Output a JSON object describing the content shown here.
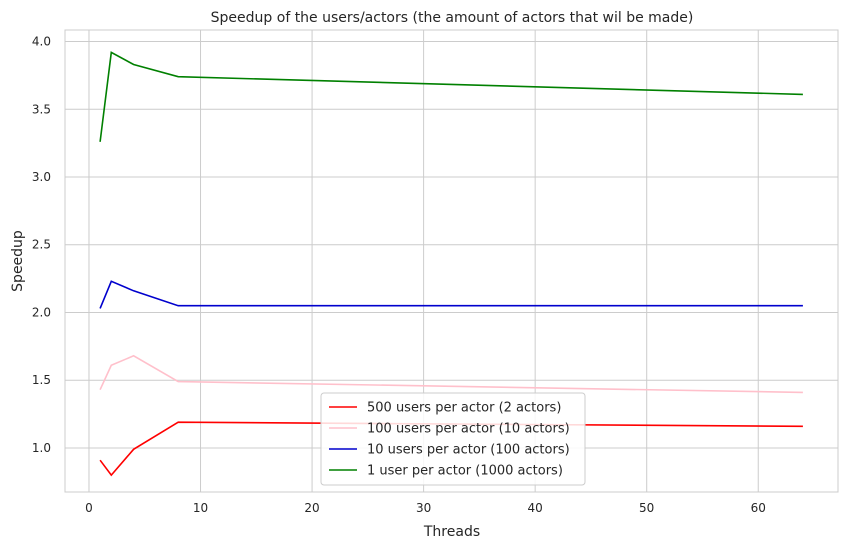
{
  "chart_data": {
    "type": "line",
    "title": "Speedup of the users/actors (the amount of actors that wil be made)",
    "xlabel": "Threads",
    "ylabel": "Speedup",
    "xlim": [
      -2.15,
      67.15
    ],
    "ylim": [
      0.675,
      4.085
    ],
    "xticks": [
      0,
      10,
      20,
      30,
      40,
      50,
      60
    ],
    "yticks": [
      1.0,
      1.5,
      2.0,
      2.5,
      3.0,
      3.5,
      4.0
    ],
    "ytick_labels": [
      "1.0",
      "1.5",
      "2.0",
      "2.5",
      "3.0",
      "3.5",
      "4.0"
    ],
    "grid": true,
    "legend_position": "lower-center",
    "x": [
      1,
      2,
      4,
      8,
      64
    ],
    "series": [
      {
        "name": "500 users per actor (2 actors)",
        "color": "#ff0000",
        "values": [
          0.91,
          0.8,
          0.99,
          1.19,
          1.16
        ]
      },
      {
        "name": "100 users per actor (10 actors)",
        "color": "#ffc0cb",
        "values": [
          1.43,
          1.61,
          1.68,
          1.49,
          1.41
        ]
      },
      {
        "name": "10 users per actor (100 actors)",
        "color": "#0000cd",
        "values": [
          2.03,
          2.23,
          2.16,
          2.05,
          2.05
        ]
      },
      {
        "name": "1 user per actor (1000 actors)",
        "color": "#008000",
        "values": [
          3.26,
          3.92,
          3.83,
          3.74,
          3.61
        ]
      }
    ]
  }
}
